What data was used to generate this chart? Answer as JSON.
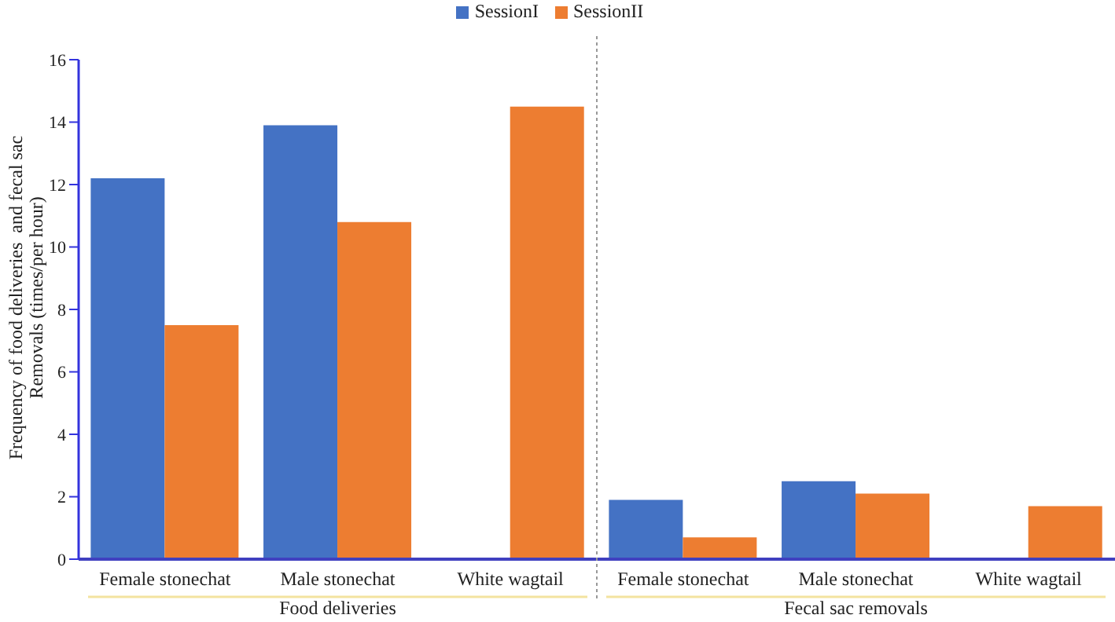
{
  "chart_data": {
    "type": "bar",
    "ylabel": "Frequency of food deliveries  and fecal sac\nRemovals (times/per hour)",
    "categories": [
      "Female stonechat",
      "Male stonechat",
      "White wagtail",
      "Female stonechat",
      "Male stonechat",
      "White wagtail"
    ],
    "series": [
      {
        "name": "SessionI",
        "color": "#4472c4",
        "values": [
          12.2,
          13.9,
          null,
          1.9,
          2.5,
          null
        ]
      },
      {
        "name": "SessionII",
        "color": "#ed7d31",
        "values": [
          7.5,
          10.8,
          14.5,
          0.7,
          2.1,
          1.7
        ]
      }
    ],
    "annotations": [
      "Food deliveries",
      "Fecal sac removals"
    ],
    "ylim": [
      0,
      16
    ],
    "yticks": [
      0,
      2,
      4,
      6,
      8,
      10,
      12,
      14,
      16
    ],
    "grid": false,
    "legend": "top"
  }
}
